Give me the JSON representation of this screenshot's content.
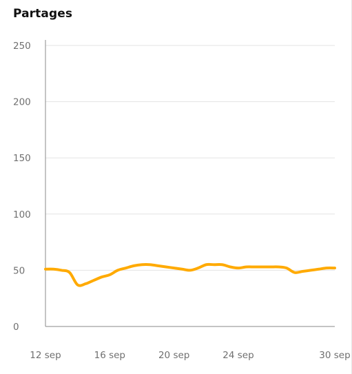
{
  "header": {
    "title": "Partages"
  },
  "chart_data": {
    "type": "line",
    "title": "Partages",
    "xlabel": "",
    "ylabel": "",
    "ylim": [
      0,
      250
    ],
    "yticks": [
      0,
      50,
      100,
      150,
      200,
      250
    ],
    "x_ticks": [
      "12 sep",
      "16 sep",
      "20 sep",
      "24 sep",
      "30 sep"
    ],
    "x_tick_days": [
      12,
      16,
      20,
      24,
      30
    ],
    "grid": true,
    "legend": "none",
    "series": [
      {
        "color": "#ffaa00",
        "x": [
          12,
          12.5,
          13,
          13.5,
          14,
          14.5,
          15,
          15.5,
          16,
          16.5,
          17,
          17.5,
          18,
          18.5,
          19,
          19.5,
          20,
          20.5,
          21,
          21.5,
          22,
          22.5,
          23,
          23.5,
          24,
          24.5,
          25,
          25.5,
          26,
          26.5,
          27,
          27.5,
          28,
          28.5,
          29,
          29.5,
          30
        ],
        "values": [
          51,
          51,
          50,
          48,
          37,
          38,
          41,
          44,
          46,
          50,
          52,
          54,
          55,
          55,
          54,
          53,
          52,
          51,
          50,
          52,
          55,
          55,
          55,
          53,
          52,
          53,
          53,
          53,
          53,
          53,
          52,
          48,
          49,
          50,
          51,
          52,
          52
        ]
      }
    ]
  }
}
